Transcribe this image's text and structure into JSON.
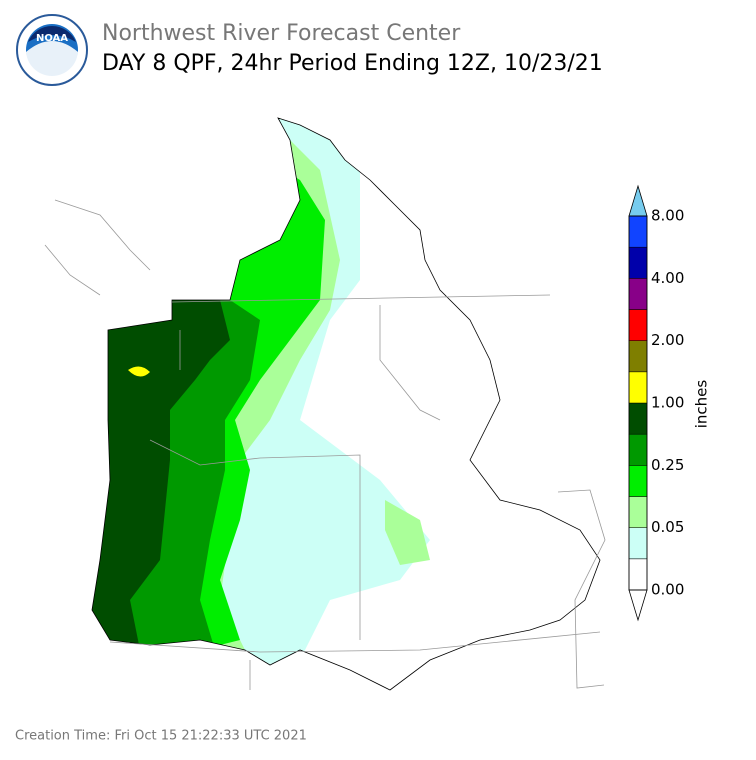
{
  "header": {
    "title": "Northwest River Forecast Center",
    "subtitle": "DAY 8 QPF, 24hr Period Ending 12Z, 10/23/21"
  },
  "colorbar": {
    "label": "inches",
    "colors": [
      "#ffffff",
      "#ccfff6",
      "#aaff99",
      "#00ee00",
      "#009900",
      "#004d00",
      "#ffff00",
      "#7f7f00",
      "#ff0000",
      "#880088",
      "#0000aa",
      "#1144ff"
    ],
    "top_color": "#77ccee",
    "labels": [
      "0.00",
      "0.05",
      "0.25",
      "1.00",
      "2.00",
      "4.00",
      "8.00"
    ]
  },
  "footer": {
    "creation": "Creation Time: Fri Oct 15 21:22:33 UTC 2021"
  }
}
